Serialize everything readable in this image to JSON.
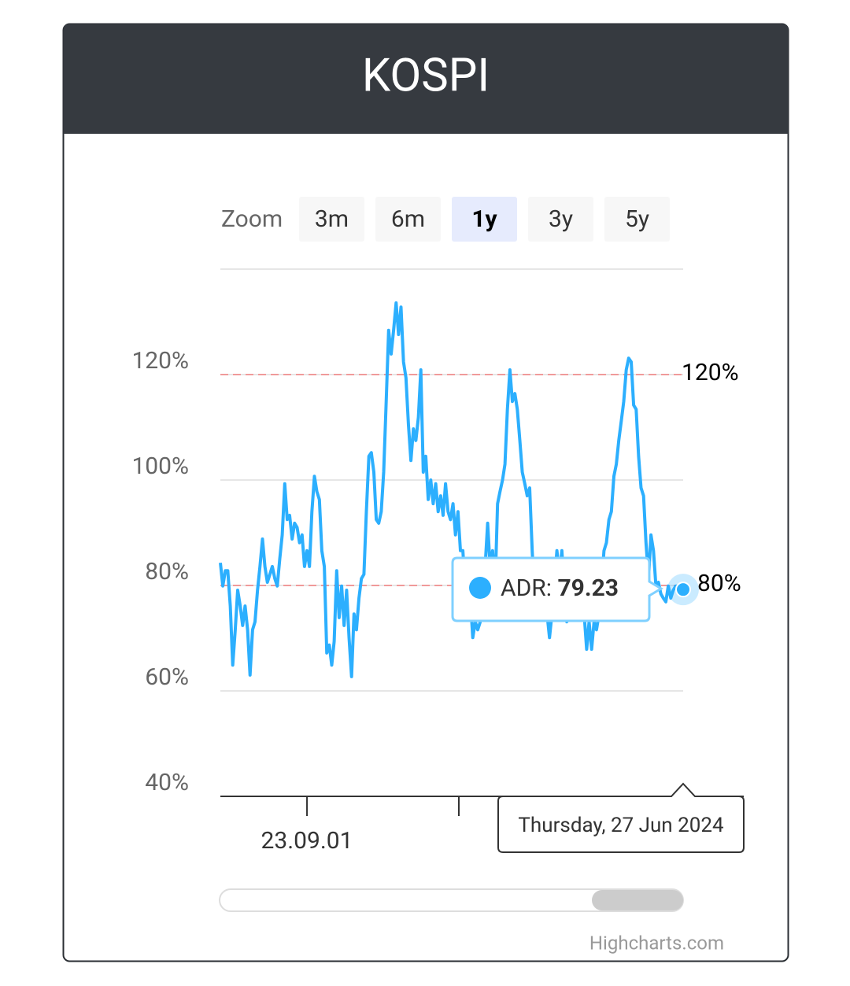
{
  "chart_data": {
    "type": "line",
    "title": "KOSPI",
    "zoom_label": "Zoom",
    "zoom_buttons": [
      "3m",
      "6m",
      "1y",
      "3y",
      "5y"
    ],
    "zoom_selected": "1y",
    "series": [
      {
        "name": "ADR",
        "color": "#2caffe",
        "values": [
          84.3,
          79.9,
          82.8,
          82.8,
          76.1,
          64.9,
          71.6,
          79.1,
          76.1,
          72.4,
          76.1,
          71.6,
          63.0,
          71.6,
          73.1,
          79.1,
          83.6,
          88.8,
          83.6,
          80.6,
          82.1,
          83.6,
          81.3,
          79.9,
          85.1,
          89.6,
          99.3,
          92.5,
          93.3,
          88.8,
          91.8,
          91.0,
          88.1,
          89.6,
          83.6,
          86.6,
          83.6,
          94.0,
          100.7,
          97.8,
          96.3,
          86.6,
          83.6,
          67.2,
          68.7,
          64.9,
          69.4,
          82.8,
          73.9,
          79.9,
          72.4,
          79.1,
          70.1,
          62.7,
          74.6,
          71.6,
          77.6,
          81.3,
          82.1,
          94.0,
          104.5,
          105.2,
          101.5,
          92.5,
          91.8,
          94.0,
          101.5,
          114.9,
          128.4,
          123.9,
          128.4,
          133.6,
          127.6,
          132.8,
          122.4,
          119.4,
          110.4,
          103.7,
          109.7,
          107.5,
          111.9,
          120.9,
          101.5,
          104.5,
          96.3,
          100.0,
          95.5,
          99.3,
          94.0,
          97.0,
          93.3,
          99.3,
          94.0,
          92.5,
          95.5,
          89.6,
          94.0,
          86.6,
          86.6,
          79.1,
          80.6,
          77.6,
          70.1,
          73.1,
          71.6,
          73.1,
          76.1,
          83.6,
          91.8,
          83.6,
          86.6,
          79.1,
          95.5,
          97.8,
          100.0,
          103.0,
          113.4,
          120.9,
          114.9,
          116.4,
          113.4,
          107.5,
          101.5,
          99.3,
          97.0,
          98.5,
          86.6,
          77.6,
          79.1,
          82.1,
          80.6,
          76.1,
          74.6,
          70.1,
          74.6,
          80.6,
          86.6,
          82.1,
          86.6,
          79.1,
          73.1,
          74.6,
          77.6,
          76.1,
          74.6,
          77.6,
          76.1,
          74.6,
          67.9,
          73.1,
          67.9,
          73.1,
          71.6,
          74.6,
          79.9,
          86.6,
          88.1,
          92.5,
          94.0,
          100.7,
          103.0,
          107.5,
          111.2,
          114.9,
          120.9,
          123.1,
          122.4,
          114.2,
          113.4,
          104.5,
          98.5,
          97.0,
          88.1,
          81.3,
          89.6,
          86.6,
          79.9,
          80.6,
          78.4,
          77.6,
          76.9,
          79.9,
          77.6,
          79.1,
          79.9,
          79.9,
          79.1,
          79.23
        ]
      }
    ],
    "xlim": [
      0,
      187
    ],
    "xticks": [
      {
        "value": 35,
        "label": "23.09.01"
      }
    ],
    "ylim": [
      40,
      140
    ],
    "yticks": [
      {
        "value": 40,
        "label": "40%"
      },
      {
        "value": 60,
        "label": "60%"
      },
      {
        "value": 80,
        "label": "80%"
      },
      {
        "value": 100,
        "label": "100%"
      },
      {
        "value": 120,
        "label": "120%"
      }
    ],
    "grid": true,
    "plot_lines": [
      {
        "value": 120,
        "label": "120%",
        "color": "#f09a9a"
      },
      {
        "value": 80,
        "label": "80%",
        "color": "#f09a9a"
      }
    ],
    "tooltip_date": "Thursday, 27 Jun 2024",
    "credits": "Highcharts.com"
  }
}
